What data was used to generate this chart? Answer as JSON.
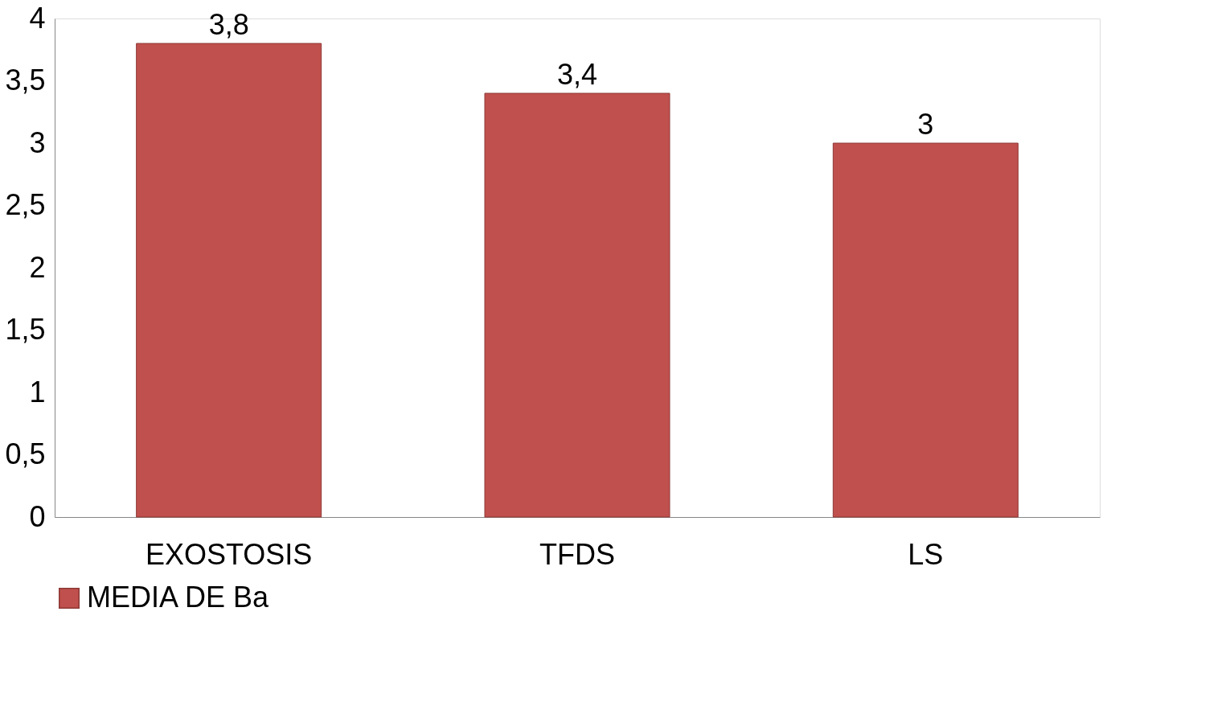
{
  "chart_data": {
    "type": "bar",
    "categories": [
      "EXOSTOSIS",
      "TFDS",
      "LS"
    ],
    "series": [
      {
        "name": "MEDIA DE Ba",
        "color": "#c0504d",
        "values": [
          3.8,
          3.4,
          3
        ],
        "value_labels": [
          "3,8",
          "3,4",
          "3"
        ]
      }
    ],
    "ylim": [
      0,
      4
    ],
    "yticks": [
      0,
      {
        "value": 0.5,
        "label": "0,5"
      },
      1,
      {
        "value": 1.5,
        "label": "1,5"
      },
      2,
      {
        "value": 2.5,
        "label": "2,5"
      },
      3,
      {
        "value": 3.5,
        "label": "3,5"
      },
      4
    ],
    "grid": false,
    "legend": "bottom"
  }
}
